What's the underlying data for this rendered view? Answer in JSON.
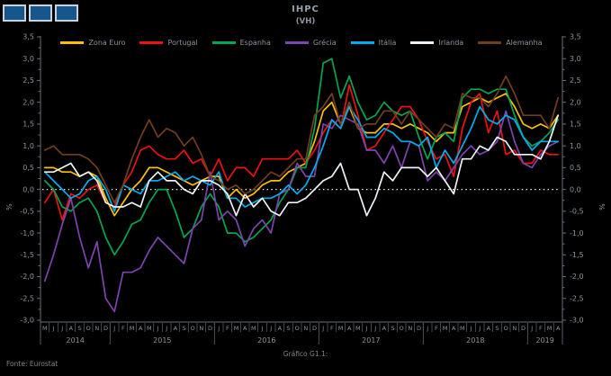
{
  "window": {
    "title": "IHPC",
    "subtitle": "(VH)"
  },
  "logo": {
    "name": "three-blue-squares-logo",
    "square_count": 3,
    "square_color": "#15568d",
    "border_color": "#c9d2da"
  },
  "footer": {
    "caption": "Gráfico G1.1:",
    "source": "Fonte: Eurostat"
  },
  "chart_data": {
    "type": "line",
    "title": "IHPC",
    "subtitle": "(VH)",
    "ylabel_left": "%",
    "ylabel_right": "%",
    "ylim": [
      -3.0,
      3.5
    ],
    "ytick_step": 0.5,
    "grid": false,
    "legend_position": "top",
    "zero_line": "white-dotted",
    "background": "#000000",
    "text_color": "#8e949b",
    "x_month_labels": [
      "M",
      "J",
      "J",
      "A",
      "S",
      "O",
      "N",
      "D",
      "J",
      "F",
      "M",
      "A",
      "M",
      "J",
      "J",
      "A",
      "S",
      "O",
      "N",
      "D",
      "J",
      "F",
      "M",
      "A",
      "M",
      "J",
      "J",
      "A",
      "S",
      "O",
      "N",
      "D",
      "J",
      "F",
      "M",
      "A",
      "M",
      "J",
      "J",
      "A",
      "S",
      "O",
      "N",
      "D",
      "J",
      "F",
      "M",
      "A",
      "M",
      "J",
      "J",
      "A",
      "S",
      "O",
      "N",
      "D",
      "J",
      "F",
      "M",
      "A"
    ],
    "year_groups": [
      {
        "label": "2014",
        "count": 8
      },
      {
        "label": "2015",
        "count": 12
      },
      {
        "label": "2016",
        "count": 12
      },
      {
        "label": "2017",
        "count": 12
      },
      {
        "label": "2018",
        "count": 12
      },
      {
        "label": "2019",
        "count": 4
      }
    ],
    "series": [
      {
        "name": "Zona Euro",
        "color": "#ffc000",
        "values": [
          0.5,
          0.5,
          0.4,
          0.4,
          0.3,
          0.4,
          0.3,
          -0.2,
          -0.6,
          -0.3,
          0.0,
          0.2,
          0.5,
          0.5,
          0.4,
          0.3,
          0.2,
          0.1,
          0.2,
          0.3,
          0.3,
          -0.2,
          0.0,
          -0.2,
          -0.1,
          0.1,
          0.2,
          0.2,
          0.4,
          0.5,
          0.6,
          1.1,
          1.8,
          2.0,
          1.5,
          1.9,
          1.4,
          1.3,
          1.3,
          1.5,
          1.5,
          1.4,
          1.5,
          1.4,
          1.3,
          1.1,
          1.3,
          1.3,
          1.9,
          2.0,
          2.1,
          2.0,
          2.1,
          2.2,
          1.9,
          1.5,
          1.4,
          1.5,
          1.4,
          1.7
        ]
      },
      {
        "name": "Portugal",
        "color": "#ee1111",
        "values": [
          -0.3,
          0.0,
          -0.7,
          -0.1,
          -0.2,
          0.0,
          0.1,
          -0.3,
          -0.4,
          0.1,
          0.4,
          0.9,
          1.0,
          0.8,
          0.7,
          0.7,
          0.9,
          0.6,
          0.7,
          0.3,
          0.7,
          0.2,
          0.5,
          0.5,
          0.3,
          0.7,
          0.7,
          0.7,
          0.7,
          0.9,
          0.6,
          0.9,
          1.3,
          1.6,
          1.4,
          2.4,
          1.7,
          0.9,
          1.0,
          1.3,
          1.6,
          1.9,
          1.9,
          1.6,
          1.1,
          0.7,
          0.8,
          0.3,
          1.4,
          2.0,
          2.2,
          1.3,
          1.8,
          0.8,
          0.9,
          0.6,
          0.6,
          0.9,
          0.8,
          0.8
        ]
      },
      {
        "name": "Espanha",
        "color": "#00a651",
        "values": [
          0.2,
          0.0,
          -0.4,
          -0.5,
          -0.3,
          -0.2,
          -0.5,
          -1.1,
          -1.5,
          -1.2,
          -0.8,
          -0.7,
          -0.3,
          0.0,
          0.0,
          -0.5,
          -1.1,
          -0.9,
          -0.4,
          -0.1,
          -0.4,
          -1.0,
          -1.0,
          -1.2,
          -1.1,
          -0.9,
          -0.7,
          -0.3,
          0.0,
          0.5,
          0.5,
          1.4,
          2.9,
          3.0,
          2.1,
          2.6,
          2.0,
          1.6,
          1.7,
          2.0,
          1.8,
          1.7,
          1.8,
          1.2,
          0.7,
          1.2,
          1.3,
          1.1,
          2.1,
          2.3,
          2.3,
          2.2,
          2.3,
          2.3,
          1.7,
          1.2,
          1.0,
          1.1,
          1.3,
          1.6
        ]
      },
      {
        "name": "Grécia",
        "color": "#7d44ad",
        "values": [
          -2.1,
          -1.5,
          -0.8,
          -0.2,
          -1.1,
          -1.8,
          -1.2,
          -2.5,
          -2.8,
          -1.9,
          -1.9,
          -1.8,
          -1.4,
          -1.1,
          -1.3,
          -1.5,
          -1.7,
          -0.9,
          -0.7,
          0.4,
          -0.7,
          -0.5,
          -0.7,
          -1.3,
          -0.9,
          -0.7,
          -1.0,
          -0.1,
          0.0,
          0.6,
          0.3,
          0.3,
          1.5,
          1.4,
          1.7,
          1.6,
          1.5,
          0.9,
          0.9,
          0.6,
          1.0,
          0.5,
          1.1,
          1.0,
          0.2,
          0.4,
          0.2,
          0.5,
          0.8,
          1.0,
          0.8,
          0.9,
          1.1,
          1.8,
          1.1,
          0.6,
          0.5,
          0.8,
          1.0,
          1.1
        ]
      },
      {
        "name": "Itália",
        "color": "#00aeef",
        "values": [
          0.4,
          0.2,
          0.0,
          -0.2,
          -0.1,
          0.2,
          0.3,
          0.0,
          -0.5,
          0.1,
          0.0,
          -0.1,
          0.2,
          0.2,
          0.3,
          0.4,
          0.2,
          0.3,
          0.2,
          0.1,
          0.4,
          -0.2,
          -0.2,
          -0.4,
          -0.3,
          -0.2,
          -0.2,
          -0.1,
          0.1,
          -0.1,
          0.1,
          0.5,
          1.0,
          1.6,
          1.4,
          1.9,
          1.6,
          1.2,
          1.2,
          1.4,
          1.3,
          1.1,
          1.1,
          1.0,
          1.2,
          0.5,
          0.9,
          0.6,
          1.0,
          1.4,
          1.9,
          1.6,
          1.5,
          1.7,
          1.6,
          1.2,
          0.9,
          1.1,
          1.1,
          1.1
        ]
      },
      {
        "name": "Irlanda",
        "color": "#eef2f7",
        "values": [
          0.4,
          0.4,
          0.5,
          0.6,
          0.3,
          0.4,
          0.2,
          -0.3,
          -0.4,
          -0.4,
          -0.3,
          -0.4,
          0.2,
          0.4,
          0.2,
          0.2,
          0.0,
          -0.1,
          0.2,
          0.2,
          0.1,
          -0.1,
          -0.6,
          -0.1,
          -0.4,
          -0.2,
          -0.5,
          -0.6,
          -0.3,
          -0.3,
          -0.2,
          0.0,
          0.2,
          0.3,
          0.6,
          0.0,
          0.0,
          -0.6,
          -0.2,
          0.4,
          0.2,
          0.5,
          0.5,
          0.5,
          0.3,
          0.5,
          0.2,
          -0.1,
          0.7,
          0.7,
          1.0,
          0.9,
          1.2,
          1.1,
          0.8,
          0.8,
          0.8,
          0.7,
          1.1,
          1.7
        ]
      },
      {
        "name": "Alemanha",
        "color": "#6e3e1e",
        "values": [
          0.9,
          1.0,
          0.8,
          0.8,
          0.8,
          0.7,
          0.5,
          0.1,
          -0.3,
          0.1,
          0.7,
          1.2,
          1.6,
          1.2,
          1.4,
          1.3,
          1.0,
          1.2,
          0.8,
          0.3,
          0.2,
          0.0,
          0.1,
          -0.1,
          0.0,
          0.2,
          0.4,
          0.3,
          0.5,
          0.7,
          0.7,
          1.7,
          1.9,
          2.2,
          1.5,
          2.0,
          1.4,
          1.5,
          1.5,
          1.8,
          1.8,
          1.5,
          1.8,
          1.6,
          1.4,
          1.2,
          1.5,
          1.4,
          2.2,
          2.1,
          2.1,
          1.9,
          2.2,
          2.6,
          2.2,
          1.7,
          1.7,
          1.7,
          1.4,
          2.1
        ]
      }
    ]
  }
}
